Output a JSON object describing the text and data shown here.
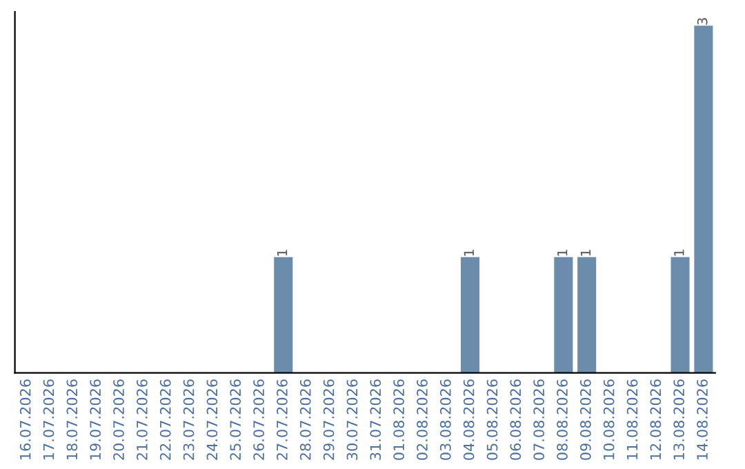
{
  "chart_data": {
    "type": "bar",
    "categories": [
      "16.07.2026",
      "17.07.2026",
      "18.07.2026",
      "19.07.2026",
      "20.07.2026",
      "21.07.2026",
      "22.07.2026",
      "23.07.2026",
      "24.07.2026",
      "25.07.2026",
      "26.07.2026",
      "27.07.2026",
      "28.07.2026",
      "29.07.2026",
      "30.07.2026",
      "31.07.2026",
      "01.08.2026",
      "02.08.2026",
      "03.08.2026",
      "04.08.2026",
      "05.08.2026",
      "06.08.2026",
      "07.08.2026",
      "08.08.2026",
      "09.08.2026",
      "10.08.2026",
      "11.08.2026",
      "12.08.2026",
      "13.08.2026",
      "14.08.2026"
    ],
    "values": [
      0,
      0,
      0,
      0,
      0,
      0,
      0,
      0,
      0,
      0,
      0,
      1,
      0,
      0,
      0,
      0,
      0,
      0,
      0,
      1,
      0,
      0,
      0,
      1,
      1,
      0,
      0,
      0,
      1,
      3
    ],
    "value_labels": [
      null,
      null,
      null,
      null,
      null,
      null,
      null,
      null,
      null,
      null,
      null,
      "1",
      null,
      null,
      null,
      null,
      null,
      null,
      null,
      "1",
      null,
      null,
      null,
      "1",
      "1",
      null,
      null,
      null,
      "1",
      "3"
    ],
    "color": "#6b8cab",
    "tick_labels": "x",
    "grid": false
  }
}
